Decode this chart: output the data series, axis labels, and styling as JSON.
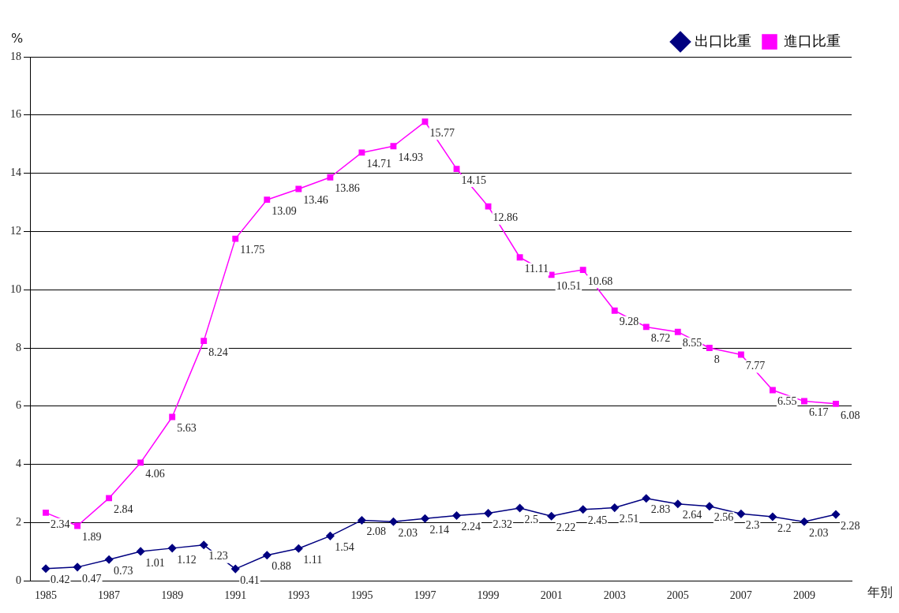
{
  "chart_data": {
    "type": "line",
    "ylabel": "%",
    "xlabel": "年別",
    "categories": [
      "1985",
      null,
      "1987",
      null,
      "1989",
      null,
      "1991",
      null,
      "1993",
      null,
      "1995",
      null,
      "1997",
      null,
      "1999",
      null,
      "2001",
      null,
      "2003",
      null,
      "2005",
      null,
      "2007",
      null,
      "2009",
      null
    ],
    "series": [
      {
        "name": "出口比重",
        "color": "#000080",
        "marker": "diamond",
        "values": [
          0.42,
          0.47,
          0.73,
          1.01,
          1.12,
          1.23,
          0.41,
          0.88,
          1.11,
          1.54,
          2.08,
          2.03,
          2.14,
          2.24,
          2.32,
          2.5,
          2.22,
          2.45,
          2.51,
          2.83,
          2.64,
          2.56,
          2.3,
          2.2,
          2.03,
          2.28
        ]
      },
      {
        "name": "進口比重",
        "color": "#ff00ff",
        "marker": "square",
        "values": [
          2.34,
          1.89,
          2.84,
          4.06,
          5.63,
          8.24,
          11.75,
          13.09,
          13.46,
          13.86,
          14.71,
          14.93,
          15.77,
          14.15,
          12.86,
          11.11,
          10.51,
          10.68,
          9.28,
          8.72,
          8.55,
          8,
          7.77,
          6.55,
          6.17,
          6.08
        ]
      }
    ],
    "ylim": [
      0,
      18
    ],
    "yticks": [
      0,
      2,
      4,
      6,
      8,
      10,
      12,
      14,
      16,
      18
    ],
    "grid": "y",
    "legend": "top right",
    "data_labels": true,
    "line_style": "solid"
  }
}
